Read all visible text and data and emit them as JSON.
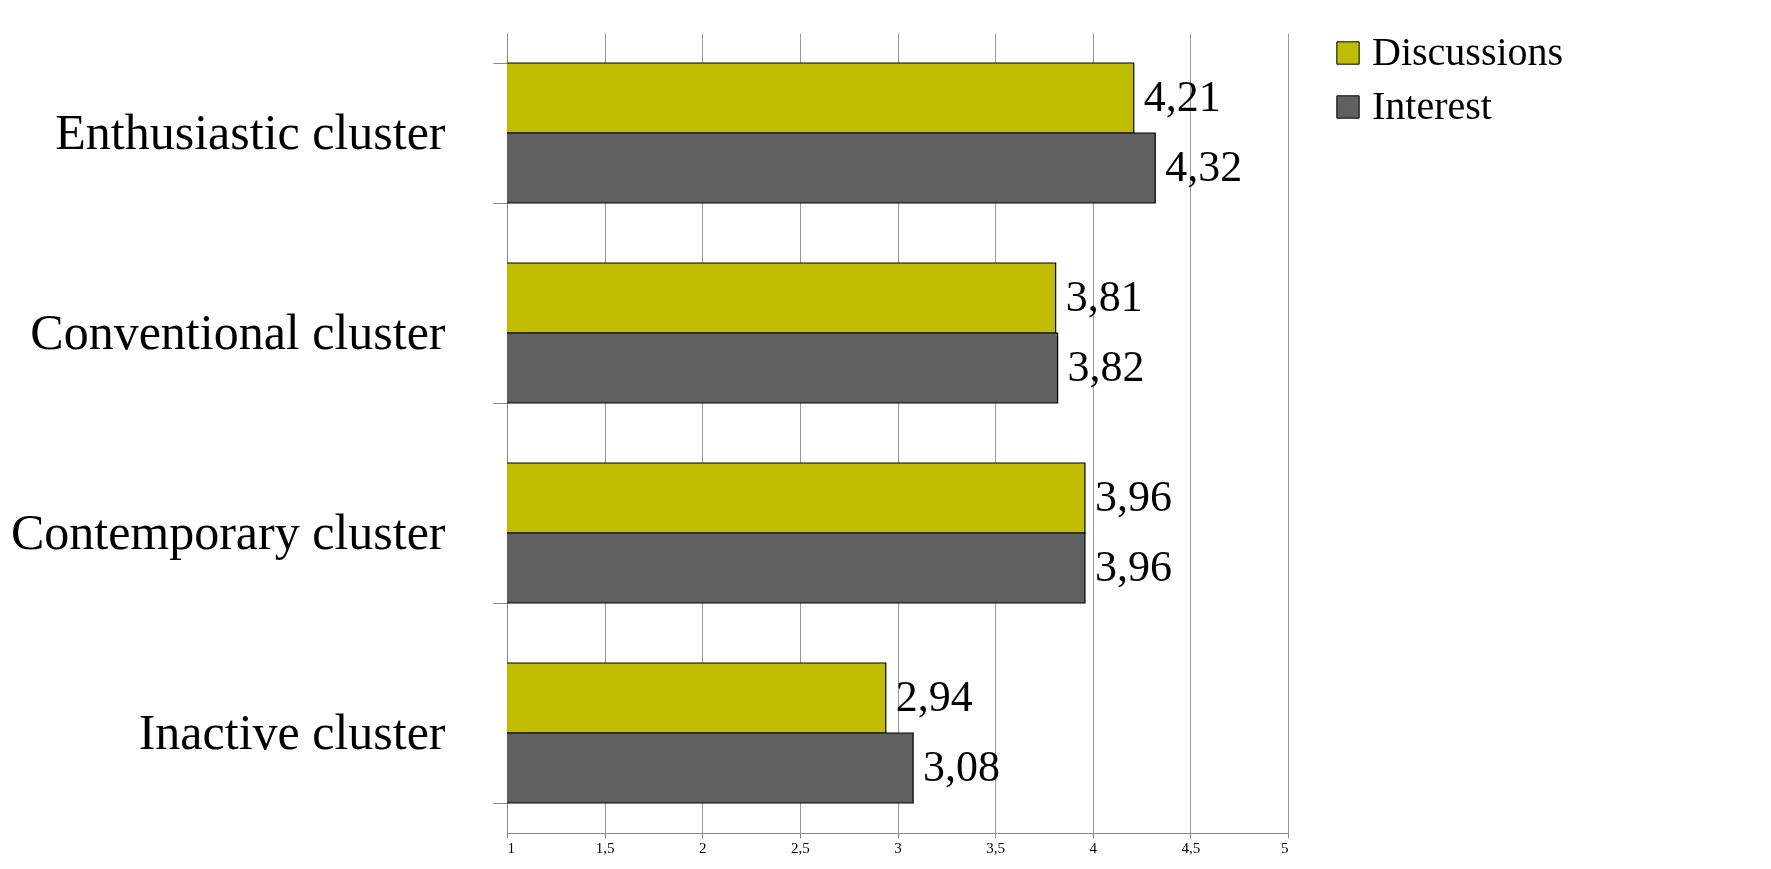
{
  "chart_data": {
    "type": "bar",
    "orientation": "horizontal",
    "categories": [
      "Enthusiastic cluster",
      "Conventional cluster",
      "Contemporary cluster",
      "Inactive cluster"
    ],
    "series": [
      {
        "name": "Discussions",
        "color": "#c0bc00",
        "values": [
          4.21,
          3.81,
          3.96,
          2.94
        ],
        "value_labels": [
          "4,21",
          "3,81",
          "3,96",
          "2,94"
        ]
      },
      {
        "name": "Interest",
        "color": "#606060",
        "values": [
          4.32,
          3.82,
          3.96,
          3.08
        ],
        "value_labels": [
          "4,32",
          "3,82",
          "3,96",
          "3,08"
        ]
      }
    ],
    "xlim": [
      1,
      5
    ],
    "xticks": [
      1,
      {
        "value": 1.5,
        "label": "1,5"
      },
      2,
      {
        "value": 2.5,
        "label": "2,5"
      },
      3,
      {
        "value": 3.5,
        "label": "3,5"
      },
      4,
      {
        "value": 4.5,
        "label": "4,5"
      },
      5
    ],
    "grid": "x",
    "legend": "right"
  }
}
